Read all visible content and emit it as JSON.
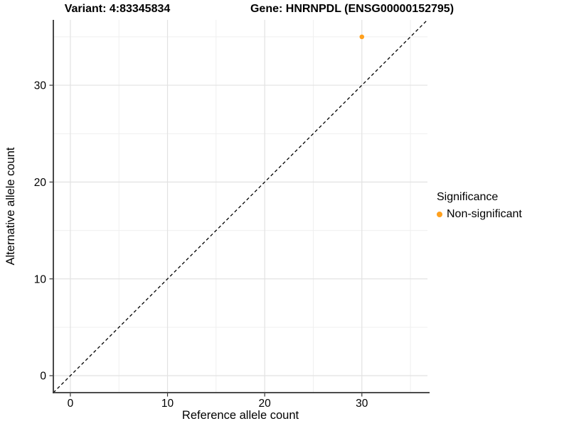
{
  "chart_data": {
    "type": "scatter",
    "title_left": "Variant: 4:83345834",
    "title_right": "Gene: HNRNPDL (ENSG00000152795)",
    "xlabel": "Reference allele count",
    "ylabel": "Alternative allele count",
    "xlim": [
      -1.75,
      36.75
    ],
    "ylim": [
      -1.75,
      36.75
    ],
    "x_major_ticks": [
      0,
      10,
      20,
      30
    ],
    "y_major_ticks": [
      0,
      10,
      20,
      30
    ],
    "x_minor_ticks": [
      5,
      15,
      25,
      35
    ],
    "y_minor_ticks": [
      5,
      15,
      25,
      35
    ],
    "grid": "major+minor",
    "reference_line": {
      "type": "identity",
      "style": "dashed",
      "color": "#000000"
    },
    "series": [
      {
        "name": "Non-significant",
        "color": "#FFA01E",
        "points": [
          {
            "x": 30,
            "y": 35
          }
        ]
      }
    ],
    "legend": {
      "title": "Significance",
      "position": "right",
      "entries": [
        {
          "label": "Non-significant",
          "color": "#FFA01E"
        }
      ]
    },
    "colors": {
      "background": "#FFFFFF",
      "grid_major": "#E2E2E2",
      "grid_minor": "#EFEFEF",
      "axis_line": "#333333",
      "text": "#000000"
    }
  }
}
